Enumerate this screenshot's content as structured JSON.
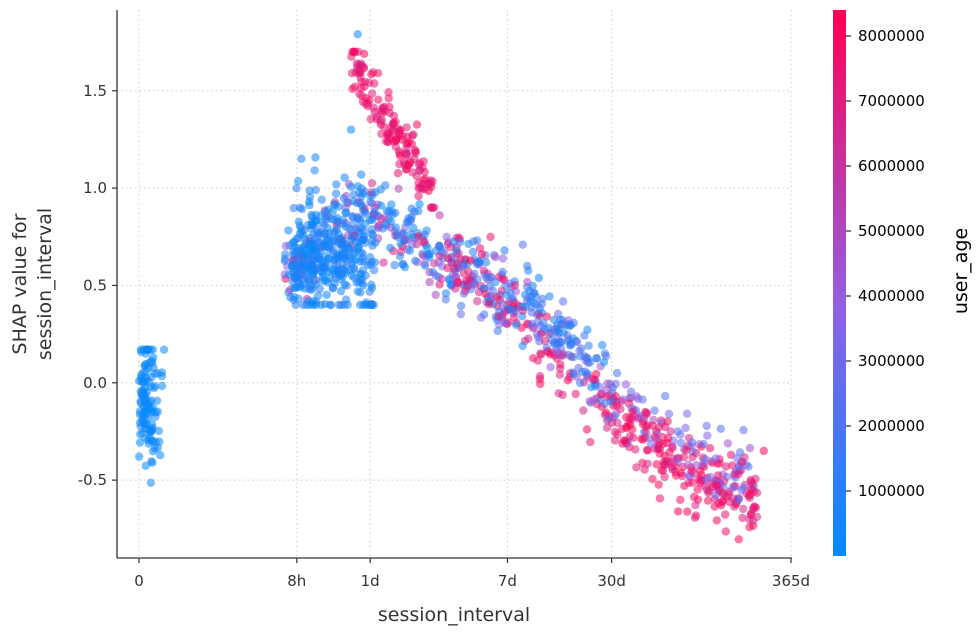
{
  "chart_data": {
    "type": "scatter",
    "xlabel": "session_interval",
    "ylabel_lines": [
      "SHAP value for",
      "session_interval"
    ],
    "ylim": [
      -0.9,
      1.92
    ],
    "yticks": [
      {
        "value": 1.5,
        "label": "1.5"
      },
      {
        "value": 1.0,
        "label": "1.0"
      },
      {
        "value": 0.5,
        "label": "0.5"
      },
      {
        "value": 0.0,
        "label": "0.0"
      },
      {
        "value": -0.5,
        "label": "-0.5"
      }
    ],
    "xticks": [
      {
        "label": "0",
        "hours": 0
      },
      {
        "label": "8h",
        "hours": 8
      },
      {
        "label": "1d",
        "hours": 24
      },
      {
        "label": "7d",
        "hours": 168
      },
      {
        "label": "30d",
        "hours": 720
      },
      {
        "label": "365d",
        "hours": 8760
      }
    ],
    "grid": true,
    "colorbar": {
      "title": "user_age",
      "min": 0,
      "max": 8400000,
      "ticks": [
        {
          "value": 1000000,
          "label": "1000000"
        },
        {
          "value": 2000000,
          "label": "2000000"
        },
        {
          "value": 3000000,
          "label": "3000000"
        },
        {
          "value": 4000000,
          "label": "4000000"
        },
        {
          "value": 5000000,
          "label": "5000000"
        },
        {
          "value": 6000000,
          "label": "6000000"
        },
        {
          "value": 7000000,
          "label": "7000000"
        },
        {
          "value": 8000000,
          "label": "8000000"
        }
      ],
      "low_color": "#008bfb",
      "high_color": "#ff0052"
    },
    "clusters": [
      {
        "name": "zero-interval",
        "x_hours": 0,
        "x_jitter": 0.5,
        "y_min": -0.75,
        "y_max": 0.17,
        "y_center": -0.1,
        "count": 120,
        "user_age_max": 500000
      },
      {
        "name": "trend",
        "x_range_hours": [
          6.5,
          5500
        ],
        "count": 900
      },
      {
        "name": "low-age-scatter",
        "x_range_hours": [
          7.5,
          26
        ],
        "y_range": [
          0.4,
          1.3
        ],
        "count": 320,
        "user_age_max": 1200000
      },
      {
        "name": "high-age-upper",
        "x_range_hours": [
          18,
          60
        ],
        "y_range": [
          0.9,
          1.7
        ],
        "count": 150,
        "user_age_min": 6800000
      }
    ],
    "notable_points": [
      {
        "session_interval_hours": 20,
        "shap": 1.79,
        "user_age": 300000
      },
      {
        "session_interval_hours": 22,
        "shap": 1.69,
        "user_age": 8000000
      },
      {
        "session_interval_hours": 2400,
        "shap": -0.6,
        "user_age": 8000000
      },
      {
        "session_interval_hours": 5000,
        "shap": -0.5,
        "user_age": 8000000
      },
      {
        "session_interval_hours": 6000,
        "shap": -0.35,
        "user_age": 8000000
      }
    ]
  }
}
